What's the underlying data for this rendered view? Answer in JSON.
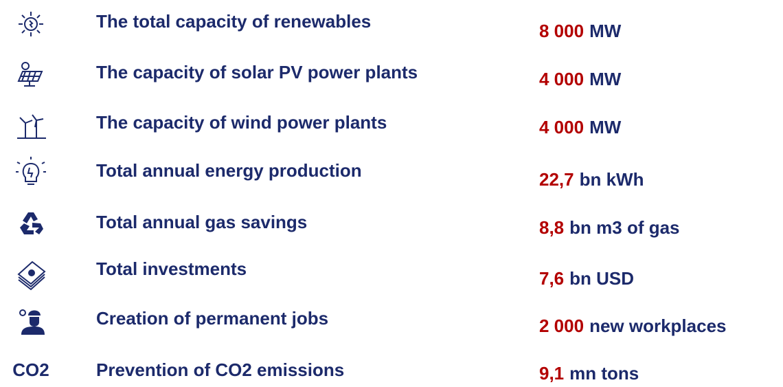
{
  "rows": [
    {
      "label": "The total capacity of renewables",
      "value": "8 000",
      "unit": "MW"
    },
    {
      "label": "The capacity of solar PV power plants",
      "value": "4 000",
      "unit": "MW"
    },
    {
      "label": "The capacity of wind power plants",
      "value": "4 000",
      "unit": "MW"
    },
    {
      "label": "Total annual energy production",
      "value": "22,7",
      "unit": "bn kWh"
    },
    {
      "label": "Total annual gas savings",
      "value": "8,8",
      "unit": "bn m3 of gas"
    },
    {
      "label": "Total investments",
      "value": "7,6",
      "unit": "bn USD"
    },
    {
      "label": "Creation of permanent jobs",
      "value": "2 000",
      "unit": "new workplaces"
    },
    {
      "label": "Prevention of CO2 emissions",
      "value": "9,1",
      "unit": "mn tons",
      "icon_text": "CO2"
    }
  ]
}
